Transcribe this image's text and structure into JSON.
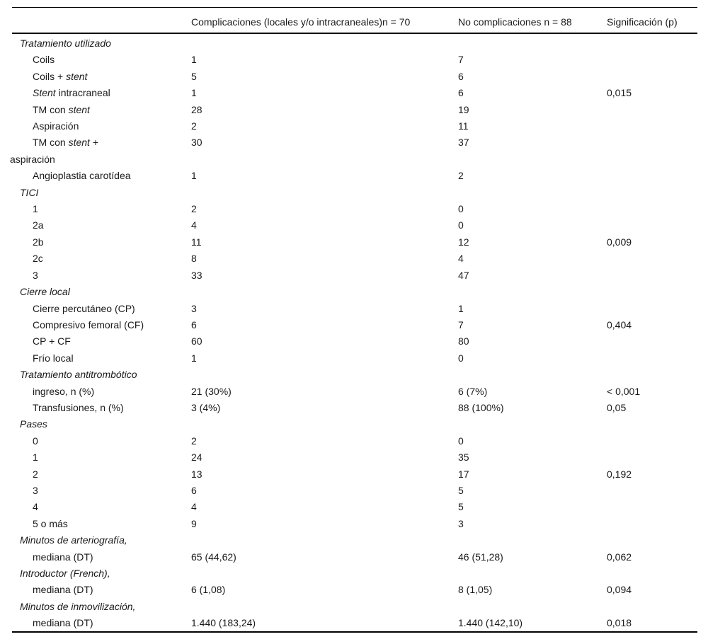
{
  "colors": {
    "background": "#ffffff",
    "text": "#1a1a1a",
    "rule": "#000000"
  },
  "table": {
    "header": {
      "col1": "Complicaciones (locales y/o intracraneales)n = 70",
      "col2": "No complicaciones n = 88",
      "col3": "Significación (p)"
    },
    "rows": [
      {
        "style": "section",
        "label": "*Tratamiento utilizado*",
        "v1": "",
        "v2": "",
        "p": ""
      },
      {
        "style": "item",
        "label": "Coils",
        "v1": "1",
        "v2": "7",
        "p": ""
      },
      {
        "style": "item",
        "label": "Coils + *stent*",
        "v1": "5",
        "v2": "6",
        "p": ""
      },
      {
        "style": "item",
        "label": "*Stent* intracraneal",
        "v1": "1",
        "v2": "6",
        "p": "0,015"
      },
      {
        "style": "item",
        "label": "TM con *stent*",
        "v1": "28",
        "v2": "19",
        "p": ""
      },
      {
        "style": "item",
        "label": "Aspiración",
        "v1": "2",
        "v2": "11",
        "p": ""
      },
      {
        "style": "item-wrap",
        "label": "TM con *stent* +\naspiración",
        "v1": "30",
        "v2": "37",
        "p": ""
      },
      {
        "style": "item",
        "label": "Angioplastia carotídea",
        "v1": "1",
        "v2": "2",
        "p": ""
      },
      {
        "style": "section",
        "label": "*TICI*",
        "v1": "",
        "v2": "",
        "p": ""
      },
      {
        "style": "item",
        "label": "1",
        "v1": "2",
        "v2": "0",
        "p": ""
      },
      {
        "style": "item",
        "label": "2a",
        "v1": "4",
        "v2": "0",
        "p": ""
      },
      {
        "style": "item",
        "label": "2b",
        "v1": "11",
        "v2": "12",
        "p": "0,009"
      },
      {
        "style": "item",
        "label": "2c",
        "v1": "8",
        "v2": "4",
        "p": ""
      },
      {
        "style": "item",
        "label": "3",
        "v1": "33",
        "v2": "47",
        "p": ""
      },
      {
        "style": "section",
        "label": "*Cierre local*",
        "v1": "",
        "v2": "",
        "p": ""
      },
      {
        "style": "item",
        "label": "Cierre percutáneo (CP)",
        "v1": "3",
        "v2": "1",
        "p": ""
      },
      {
        "style": "item",
        "label": "Compresivo femoral (CF)",
        "v1": "6",
        "v2": "7",
        "p": "0,404"
      },
      {
        "style": "item",
        "label": "CP + CF",
        "v1": "60",
        "v2": "80",
        "p": ""
      },
      {
        "style": "item",
        "label": "Frío local",
        "v1": "1",
        "v2": "0",
        "p": ""
      },
      {
        "style": "section",
        "label": "*Tratamiento antitrombótico*",
        "v1": "",
        "v2": "",
        "p": ""
      },
      {
        "style": "item",
        "label": "ingreso, n (%)",
        "v1": "21 (30%)",
        "v2": "6 (7%)",
        "p": "< 0,001"
      },
      {
        "style": "item",
        "label": "Transfusiones, n (%)",
        "v1": "3 (4%)",
        "v2": "88 (100%)",
        "p": "0,05"
      },
      {
        "style": "section",
        "label": "*Pases*",
        "v1": "",
        "v2": "",
        "p": ""
      },
      {
        "style": "item",
        "label": "0",
        "v1": "2",
        "v2": "0",
        "p": ""
      },
      {
        "style": "item",
        "label": "1",
        "v1": "24",
        "v2": "35",
        "p": ""
      },
      {
        "style": "item",
        "label": "2",
        "v1": "13",
        "v2": "17",
        "p": "0,192"
      },
      {
        "style": "item",
        "label": "3",
        "v1": "6",
        "v2": "5",
        "p": ""
      },
      {
        "style": "item",
        "label": "4",
        "v1": "4",
        "v2": "5",
        "p": ""
      },
      {
        "style": "item",
        "label": "5 o más",
        "v1": "9",
        "v2": "3",
        "p": ""
      },
      {
        "style": "section",
        "label": "*Minutos de arteriografía,*",
        "v1": "",
        "v2": "",
        "p": ""
      },
      {
        "style": "item",
        "label": "mediana (DT)",
        "v1": "65 (44,62)",
        "v2": "46 (51,28)",
        "p": "0,062"
      },
      {
        "style": "section",
        "label": "*Introductor (French),*",
        "v1": "",
        "v2": "",
        "p": ""
      },
      {
        "style": "item",
        "label": "mediana (DT)",
        "v1": "6 (1,08)",
        "v2": "8 (1,05)",
        "p": "0,094"
      },
      {
        "style": "section",
        "label": "*Minutos de inmovilización,*",
        "v1": "",
        "v2": "",
        "p": ""
      },
      {
        "style": "item",
        "label": "mediana (DT)",
        "v1": "1.440 (183,24)",
        "v2": "1.440 (142,10)",
        "p": "0,018"
      }
    ]
  }
}
